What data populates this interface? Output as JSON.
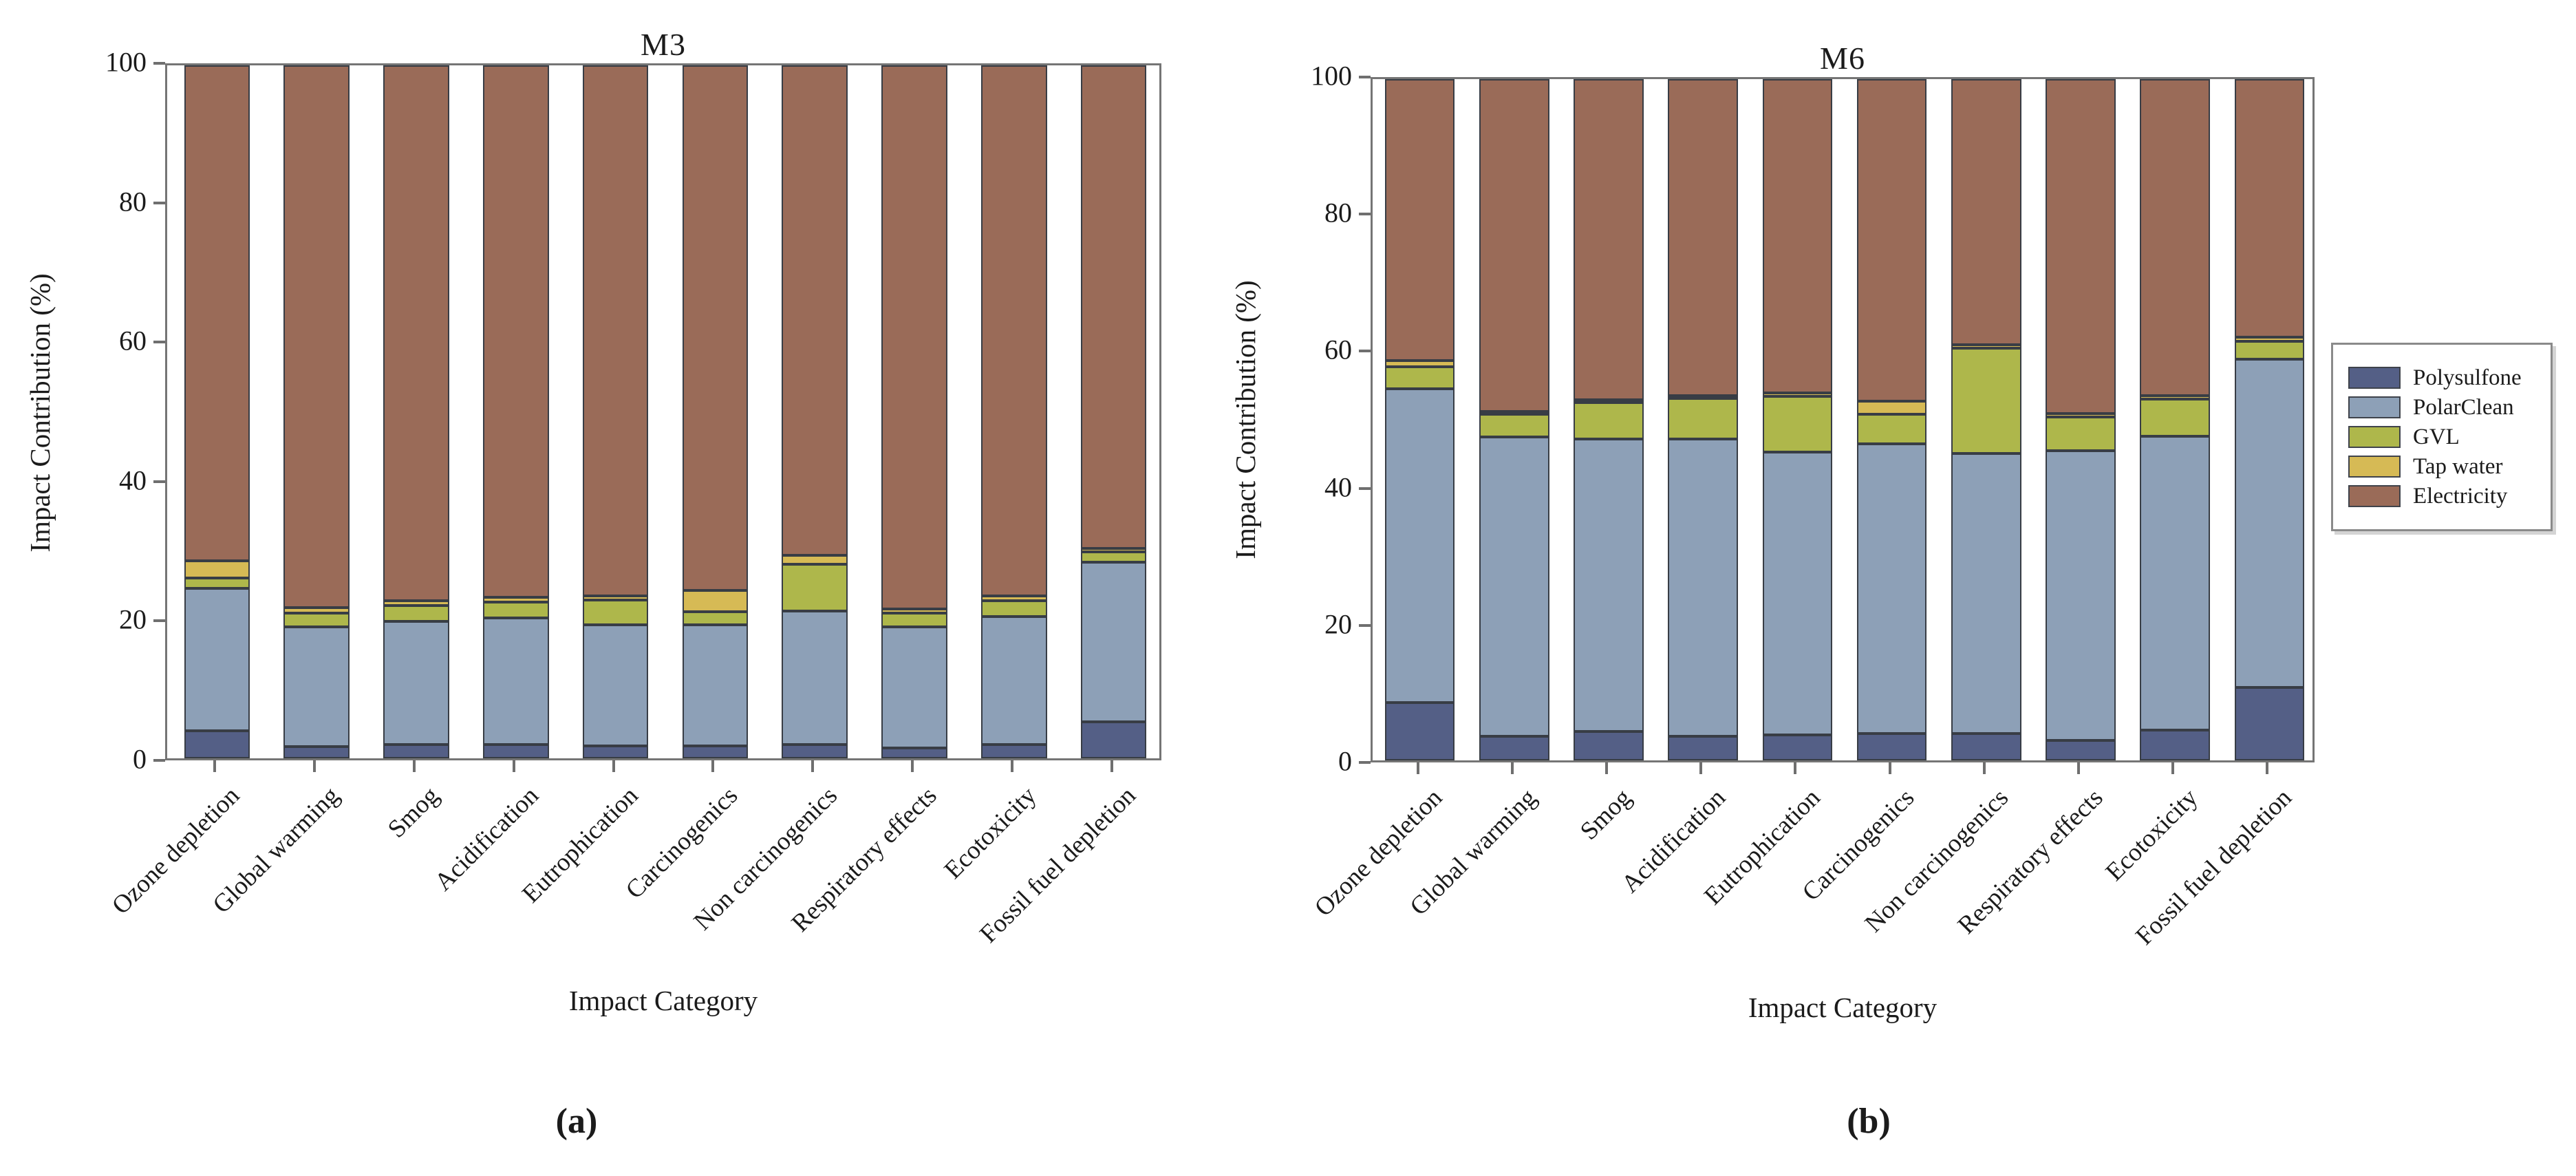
{
  "figure": {
    "captions": {
      "a": "(a)",
      "b": "(b)"
    },
    "legend": {
      "entries": [
        {
          "label": "Polysulfone",
          "color": "#545f86"
        },
        {
          "label": "PolarClean",
          "color": "#8da0b7"
        },
        {
          "label": "GVL",
          "color": "#aeb74b"
        },
        {
          "label": "Tap water",
          "color": "#d6ba55"
        },
        {
          "label": "Electricity",
          "color": "#9a6b58"
        }
      ],
      "position": "outside-right"
    }
  },
  "chart_data": [
    {
      "type": "bar",
      "stacked": true,
      "title": "M3",
      "xlabel": "Impact Category",
      "ylabel": "Impact Contribution (%)",
      "ylim": [
        0,
        100
      ],
      "yticks": [
        0,
        20,
        40,
        60,
        80,
        100
      ],
      "grid": false,
      "categories": [
        "Ozone depletion",
        "Global warming",
        "Smog",
        "Acidification",
        "Eutrophication",
        "Carcinogenics",
        "Non carcinogenics",
        "Respiratory effects",
        "Ecotoxicity",
        "Fossil fuel depletion"
      ],
      "series": [
        {
          "name": "Polysulfone",
          "color": "#545f86",
          "values": [
            4.0,
            1.7,
            2.0,
            2.0,
            1.8,
            1.8,
            2.0,
            1.5,
            2.0,
            5.3
          ]
        },
        {
          "name": "PolarClean",
          "color": "#8da0b7",
          "values": [
            20.5,
            17.3,
            17.8,
            18.3,
            17.5,
            17.5,
            19.3,
            17.5,
            18.5,
            23.0
          ]
        },
        {
          "name": "GVL",
          "color": "#aeb74b",
          "values": [
            1.5,
            2.0,
            2.2,
            2.2,
            3.5,
            1.9,
            6.7,
            2.0,
            2.2,
            1.5
          ]
        },
        {
          "name": "Tap water",
          "color": "#d6ba55",
          "values": [
            2.5,
            0.7,
            0.7,
            0.7,
            0.6,
            3.0,
            1.3,
            0.6,
            0.7,
            0.5
          ]
        },
        {
          "name": "Electricity",
          "color": "#9a6b58",
          "values": [
            71.5,
            78.3,
            77.3,
            76.8,
            76.6,
            75.8,
            70.7,
            78.4,
            76.6,
            69.7
          ]
        }
      ]
    },
    {
      "type": "bar",
      "stacked": true,
      "title": "M6",
      "xlabel": "Impact Category",
      "ylabel": "Impact Contribution (%)",
      "ylim": [
        0,
        100
      ],
      "yticks": [
        0,
        20,
        40,
        60,
        80,
        100
      ],
      "grid": false,
      "categories": [
        "Ozone depletion",
        "Global warming",
        "Smog",
        "Acidification",
        "Eutrophication",
        "Carcinogenics",
        "Non carcinogenics",
        "Respiratory effects",
        "Ecotoxicity",
        "Fossil fuel depletion"
      ],
      "series": [
        {
          "name": "Polysulfone",
          "color": "#545f86",
          "values": [
            8.5,
            3.5,
            4.2,
            3.5,
            3.7,
            3.9,
            3.9,
            2.9,
            4.4,
            10.7
          ]
        },
        {
          "name": "PolarClean",
          "color": "#8da0b7",
          "values": [
            46.0,
            44.0,
            43.0,
            43.7,
            41.6,
            42.6,
            41.2,
            42.6,
            43.2,
            48.2
          ]
        },
        {
          "name": "GVL",
          "color": "#aeb74b",
          "values": [
            3.3,
            3.3,
            5.3,
            5.9,
            8.1,
            4.3,
            15.4,
            4.9,
            5.4,
            2.6
          ]
        },
        {
          "name": "Tap water",
          "color": "#d6ba55",
          "values": [
            0.9,
            0.4,
            0.4,
            0.4,
            0.5,
            1.9,
            0.5,
            0.5,
            0.5,
            0.6
          ]
        },
        {
          "name": "Electricity",
          "color": "#9a6b58",
          "values": [
            41.3,
            48.8,
            47.1,
            46.5,
            46.1,
            47.3,
            39.0,
            49.1,
            46.5,
            37.9
          ]
        }
      ]
    }
  ]
}
